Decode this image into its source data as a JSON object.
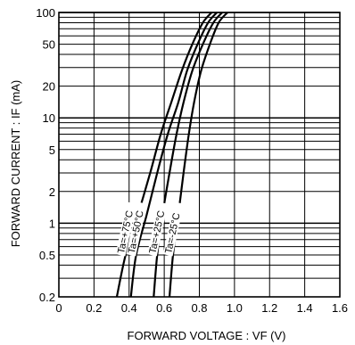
{
  "chart_data": {
    "type": "line",
    "xlabel": "FORWARD VOLTAGE : VF (V)",
    "ylabel": "FORWARD CURRENT : IF (mA)",
    "xlim": [
      0,
      1.6
    ],
    "ylim": [
      0.2,
      100
    ],
    "yscale": "log",
    "grid": true,
    "x_ticks": [
      "0",
      "0.2",
      "0.4",
      "0.6",
      "0.8",
      "1.0",
      "1.2",
      "1.4",
      "1.6"
    ],
    "y_ticks": [
      "0.2",
      "0.5",
      "1",
      "2",
      "5",
      "10",
      "20",
      "50",
      "100"
    ],
    "series": [
      {
        "name": "Ta=+75°C",
        "x": [
          0.33,
          0.38,
          0.45,
          0.52,
          0.58,
          0.64,
          0.7,
          0.76,
          0.82,
          0.87
        ],
        "y": [
          0.2,
          0.5,
          1.2,
          3,
          7,
          14,
          28,
          50,
          80,
          100
        ]
      },
      {
        "name": "Ta=+50°C",
        "x": [
          0.41,
          0.44,
          0.5,
          0.56,
          0.62,
          0.68,
          0.73,
          0.79,
          0.85,
          0.9
        ],
        "y": [
          0.2,
          0.5,
          1.2,
          3,
          7,
          14,
          28,
          50,
          80,
          100
        ]
      },
      {
        "name": "Ta=+25°C",
        "x": [
          0.54,
          0.56,
          0.59,
          0.63,
          0.67,
          0.71,
          0.76,
          0.82,
          0.88,
          0.93
        ],
        "y": [
          0.2,
          0.5,
          1.2,
          3,
          7,
          14,
          28,
          50,
          80,
          100
        ]
      },
      {
        "name": "Ta=-25°C",
        "x": [
          0.63,
          0.65,
          0.68,
          0.71,
          0.74,
          0.77,
          0.81,
          0.86,
          0.91,
          0.96
        ],
        "y": [
          0.2,
          0.5,
          1.2,
          3,
          7,
          14,
          28,
          50,
          80,
          100
        ]
      }
    ]
  }
}
